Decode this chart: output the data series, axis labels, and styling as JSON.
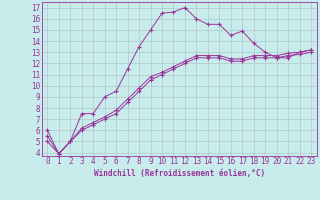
{
  "xlabel": "Windchill (Refroidissement éolien,°C)",
  "background_color": "#c8ecec",
  "line_color": "#993399",
  "grid_color": "#b0c8c8",
  "xlim": [
    -0.5,
    23.5
  ],
  "ylim": [
    3.7,
    17.5
  ],
  "xticks": [
    0,
    1,
    2,
    3,
    4,
    5,
    6,
    7,
    8,
    9,
    10,
    11,
    12,
    13,
    14,
    15,
    16,
    17,
    18,
    19,
    20,
    21,
    22,
    23
  ],
  "yticks": [
    4,
    5,
    6,
    7,
    8,
    9,
    10,
    11,
    12,
    13,
    14,
    15,
    16,
    17
  ],
  "series1_x": [
    0,
    1,
    2,
    3,
    4,
    5,
    6,
    7,
    8,
    9,
    10,
    11,
    12,
    13,
    14,
    15,
    16,
    17,
    18,
    19,
    20,
    21,
    22,
    23
  ],
  "series1_y": [
    6.0,
    3.9,
    5.0,
    7.5,
    7.5,
    9.0,
    9.5,
    11.5,
    13.5,
    15.0,
    16.5,
    16.6,
    17.0,
    16.0,
    15.5,
    15.5,
    14.5,
    14.9,
    13.8,
    13.0,
    12.5,
    12.5,
    13.0,
    13.2
  ],
  "series2_x": [
    0,
    1,
    2,
    3,
    4,
    5,
    6,
    7,
    8,
    9,
    10,
    11,
    12,
    13,
    14,
    15,
    16,
    17,
    18,
    19,
    20,
    21,
    22,
    23
  ],
  "series2_y": [
    5.5,
    3.9,
    5.0,
    6.2,
    6.7,
    7.2,
    7.8,
    8.8,
    9.8,
    10.8,
    11.2,
    11.7,
    12.2,
    12.7,
    12.7,
    12.7,
    12.4,
    12.4,
    12.7,
    12.7,
    12.7,
    12.9,
    13.0,
    13.2
  ],
  "series3_x": [
    0,
    1,
    2,
    3,
    4,
    5,
    6,
    7,
    8,
    9,
    10,
    11,
    12,
    13,
    14,
    15,
    16,
    17,
    18,
    19,
    20,
    21,
    22,
    23
  ],
  "series3_y": [
    5.0,
    3.9,
    5.0,
    6.0,
    6.5,
    7.0,
    7.5,
    8.5,
    9.5,
    10.5,
    11.0,
    11.5,
    12.0,
    12.5,
    12.5,
    12.5,
    12.2,
    12.2,
    12.5,
    12.5,
    12.5,
    12.7,
    12.8,
    13.0
  ],
  "tick_fontsize": 5.5,
  "xlabel_fontsize": 5.5
}
